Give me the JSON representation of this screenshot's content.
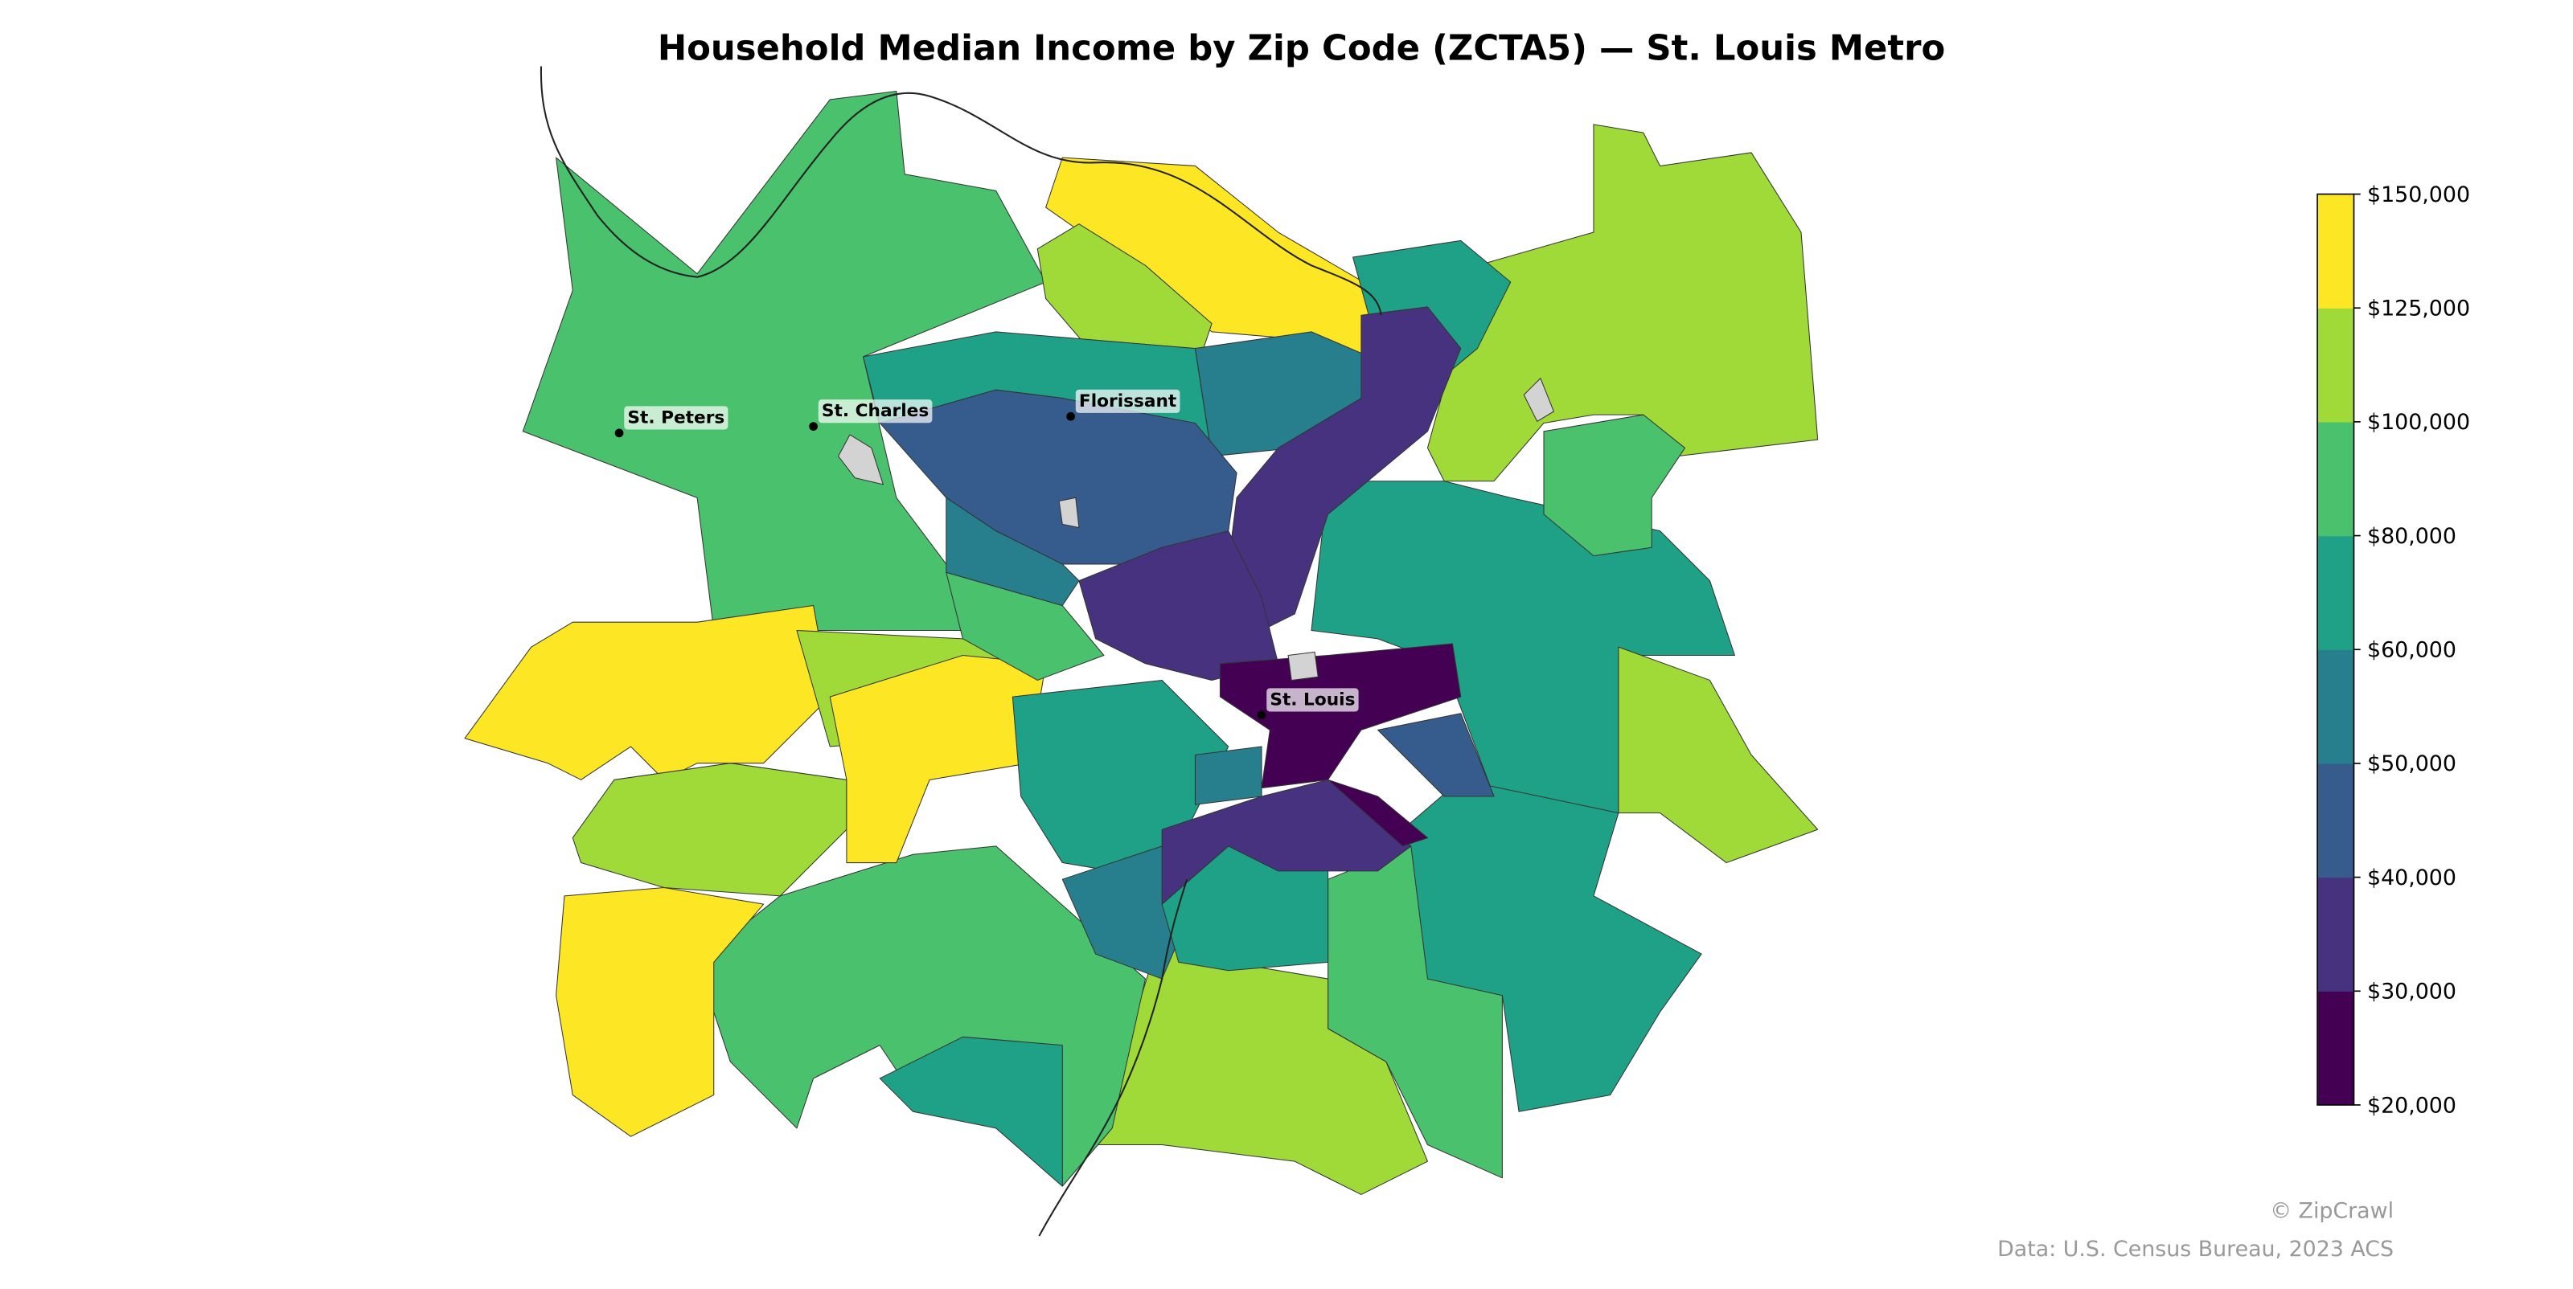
{
  "map": {
    "title": "Household Median Income by Zip Code (ZCTA5) — St. Louis Metro",
    "colorbar": {
      "ticks": [
        {
          "value": 20000,
          "label": "$20,000"
        },
        {
          "value": 30000,
          "label": "$30,000"
        },
        {
          "value": 40000,
          "label": "$40,000"
        },
        {
          "value": 50000,
          "label": "$50,000"
        },
        {
          "value": 60000,
          "label": "$60,000"
        },
        {
          "value": 80000,
          "label": "$80,000"
        },
        {
          "value": 100000,
          "label": "$100,000"
        },
        {
          "value": 125000,
          "label": "$125,000"
        },
        {
          "value": 150000,
          "label": "$150,000"
        }
      ],
      "colors": [
        "#440154",
        "#46327e",
        "#365c8d",
        "#277f8e",
        "#1fa187",
        "#4ac16d",
        "#a0da39",
        "#fde725"
      ]
    },
    "no_data_color": "#d3d3d3",
    "cities": [
      "St. Peters",
      "St. Charles",
      "Florissant",
      "St. Louis"
    ],
    "credit": "© ZipCrawl",
    "source": "Data: U.S. Census Bureau, 2023 ACS"
  }
}
